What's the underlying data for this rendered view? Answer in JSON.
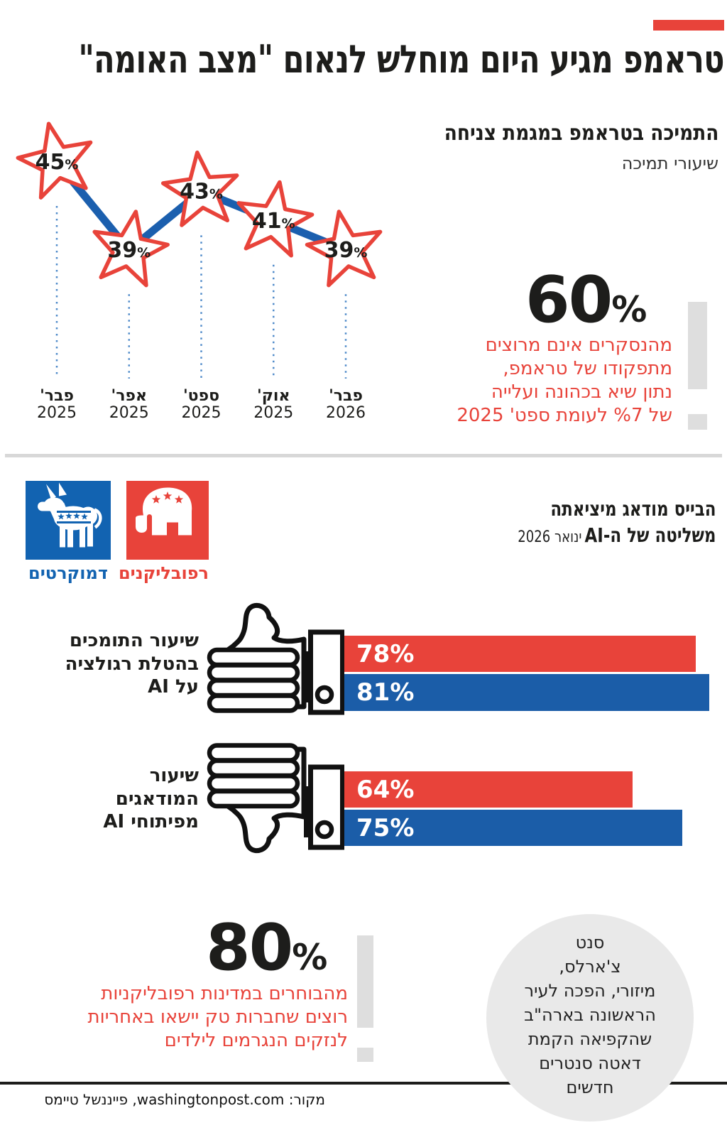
{
  "colors": {
    "red": "#e8433a",
    "blue_bar": "#1b5da8",
    "dem_blue": "#1263b1",
    "gray_exclamation": "#dedede",
    "divider_gray": "#d8d8d8",
    "circle_gray": "#e9e9e9"
  },
  "header": {
    "title": "טראמפ מגיע היום מוחלש לנאום \"מצב האומה\""
  },
  "support_section": {
    "title": "התמיכה בטראמפ במגמת צניחה",
    "subtitle": "שיעורי תמיכה"
  },
  "chart_data": [
    {
      "type": "line",
      "title": "התמיכה בטראמפ במגמת צניחה",
      "subtitle": "שיעורי תמיכה",
      "marker": "star",
      "unit": "%",
      "x": [
        "פבר' 2025",
        "אפר' 2025",
        "ספט' 2025",
        "אוק' 2025",
        "פבר' 2026"
      ],
      "x_month": [
        "פבר'",
        "אפר'",
        "ספט'",
        "אוק'",
        "פבר'"
      ],
      "x_year": [
        "2025",
        "2025",
        "2025",
        "2025",
        "2026"
      ],
      "values": [
        45,
        39,
        43,
        41,
        39
      ],
      "ylim": [
        35,
        47
      ],
      "grid": false
    },
    {
      "type": "bar",
      "orientation": "horizontal",
      "unit": "%",
      "categories": [
        "שיעור התומכים בהטלת רגולציה על AI",
        "שיעור המודאגים מפיתוחי AI"
      ],
      "series": [
        {
          "name": "רפובליקנים",
          "color": "#e8433a",
          "values": [
            78,
            64
          ]
        },
        {
          "name": "דמוקרטים",
          "color": "#1b5da8",
          "values": [
            81,
            75
          ]
        }
      ],
      "xlim": [
        0,
        100
      ],
      "legend_position": "top-right-icons"
    }
  ],
  "callout_support": {
    "value": "60",
    "unit": "%",
    "lines": [
      "מהנסקרים אינם מרוצים",
      "מתפקודו של טראמפ,",
      "נתון שיא בכהונה ועלייה",
      "של %7 לעומת ספט' 2025"
    ]
  },
  "parties": {
    "democrats": {
      "label": "דמוקרטים"
    },
    "republicans": {
      "label": "רפובליקנים"
    }
  },
  "ai_section": {
    "title_line1": "הבייס מודאג מיציאתה",
    "title_line2": "משליטה של ה-AI",
    "title_line2_date": "ינואר 2026"
  },
  "bar_groups": [
    {
      "icon": "thumbs-up-icon",
      "label_lines": [
        "שיעור התומכים",
        "בהטלת רגולציה",
        "על AI"
      ]
    },
    {
      "icon": "thumbs-down-icon",
      "label_lines": [
        "שיעור",
        "המודאגים",
        "מפיתוחי AI"
      ]
    }
  ],
  "callout_voters": {
    "value": "80",
    "unit": "%",
    "lines": [
      "מהבוחרים במדינות רפובליקניות",
      "רוצים שחברות טק יישאו באחריות",
      "לנזקים הנגרמים לילדים"
    ]
  },
  "fact_circle": {
    "lines": [
      "סנט",
      "צ'ארלס,",
      "מיזורי, הפכה לעיר",
      "הראשונה בארה\"ב",
      "שהקפיאה הקמת",
      "דאטה סנטרים",
      "חדשים"
    ]
  },
  "source": {
    "text": "מקור: washingtonpost.com, פייננשל טיימס"
  }
}
